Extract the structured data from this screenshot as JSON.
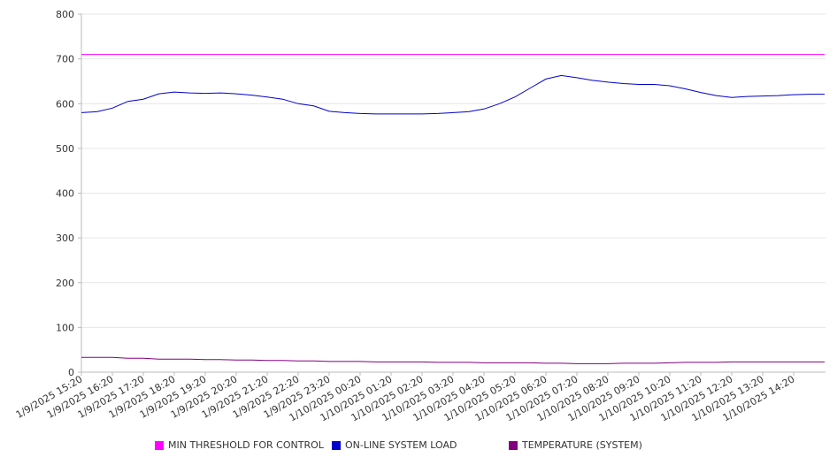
{
  "chart_data": {
    "type": "line",
    "ylim": [
      0,
      800
    ],
    "y_ticks": [
      0,
      100,
      200,
      300,
      400,
      500,
      600,
      700,
      800
    ],
    "grid": true,
    "legend_position": "bottom",
    "x_tick_labels": [
      "1/9/2025 15:20",
      "1/9/2025 16:20",
      "1/9/2025 17:20",
      "1/9/2025 18:20",
      "1/9/2025 19:20",
      "1/9/2025 20:20",
      "1/9/2025 21:20",
      "1/9/2025 22:20",
      "1/9/2025 23:20",
      "1/10/2025 00:20",
      "1/10/2025 01:20",
      "1/10/2025 02:20",
      "1/10/2025 03:20",
      "1/10/2025 04:20",
      "1/10/2025 05:20",
      "1/10/2025 06:20",
      "1/10/2025 07:20",
      "1/10/2025 08:20",
      "1/10/2025 09:20",
      "1/10/2025 10:20",
      "1/10/2025 11:20",
      "1/10/2025 12:20",
      "1/10/2025 13:20",
      "1/10/2025 14:20"
    ],
    "x": [
      "1/9/2025 15:20",
      "1/9/2025 15:50",
      "1/9/2025 16:20",
      "1/9/2025 16:50",
      "1/9/2025 17:20",
      "1/9/2025 17:50",
      "1/9/2025 18:20",
      "1/9/2025 18:50",
      "1/9/2025 19:20",
      "1/9/2025 19:50",
      "1/9/2025 20:20",
      "1/9/2025 20:50",
      "1/9/2025 21:20",
      "1/9/2025 21:50",
      "1/9/2025 22:20",
      "1/9/2025 22:50",
      "1/9/2025 23:20",
      "1/9/2025 23:50",
      "1/10/2025 00:20",
      "1/10/2025 00:50",
      "1/10/2025 01:20",
      "1/10/2025 01:50",
      "1/10/2025 02:20",
      "1/10/2025 02:50",
      "1/10/2025 03:20",
      "1/10/2025 03:50",
      "1/10/2025 04:20",
      "1/10/2025 04:50",
      "1/10/2025 05:20",
      "1/10/2025 05:50",
      "1/10/2025 06:20",
      "1/10/2025 06:50",
      "1/10/2025 07:20",
      "1/10/2025 07:50",
      "1/10/2025 08:20",
      "1/10/2025 08:50",
      "1/10/2025 09:20",
      "1/10/2025 09:50",
      "1/10/2025 10:20",
      "1/10/2025 10:50",
      "1/10/2025 11:20",
      "1/10/2025 11:50",
      "1/10/2025 12:20",
      "1/10/2025 12:50",
      "1/10/2025 13:20",
      "1/10/2025 13:50",
      "1/10/2025 14:20",
      "1/10/2025 14:50"
    ],
    "series": [
      {
        "name": "MIN THRESHOLD FOR CONTROL",
        "color": "#ff00ff",
        "values": [
          710,
          710,
          710,
          710,
          710,
          710,
          710,
          710,
          710,
          710,
          710,
          710,
          710,
          710,
          710,
          710,
          710,
          710,
          710,
          710,
          710,
          710,
          710,
          710,
          710,
          710,
          710,
          710,
          710,
          710,
          710,
          710,
          710,
          710,
          710,
          710,
          710,
          710,
          710,
          710,
          710,
          710,
          710,
          710,
          710,
          710,
          710,
          710
        ]
      },
      {
        "name": "ON-LINE SYSTEM LOAD",
        "color": "#0000cc",
        "values": [
          580,
          582,
          590,
          605,
          610,
          622,
          626,
          624,
          623,
          624,
          622,
          619,
          615,
          610,
          600,
          595,
          583,
          580,
          578,
          577,
          577,
          577,
          577,
          578,
          580,
          582,
          588,
          600,
          615,
          635,
          655,
          663,
          658,
          652,
          648,
          645,
          643,
          643,
          640,
          633,
          625,
          618,
          614,
          616,
          617,
          618,
          620,
          621
        ]
      },
      {
        "name": "TEMPERATURE (SYSTEM)",
        "color": "#800080",
        "values": [
          33,
          33,
          33,
          31,
          31,
          29,
          29,
          29,
          28,
          28,
          27,
          27,
          26,
          26,
          25,
          25,
          24,
          24,
          24,
          23,
          23,
          23,
          23,
          22,
          22,
          22,
          21,
          21,
          21,
          21,
          20,
          20,
          19,
          19,
          19,
          20,
          20,
          20,
          21,
          22,
          22,
          22,
          23,
          23,
          23,
          23,
          23,
          23
        ]
      }
    ]
  }
}
